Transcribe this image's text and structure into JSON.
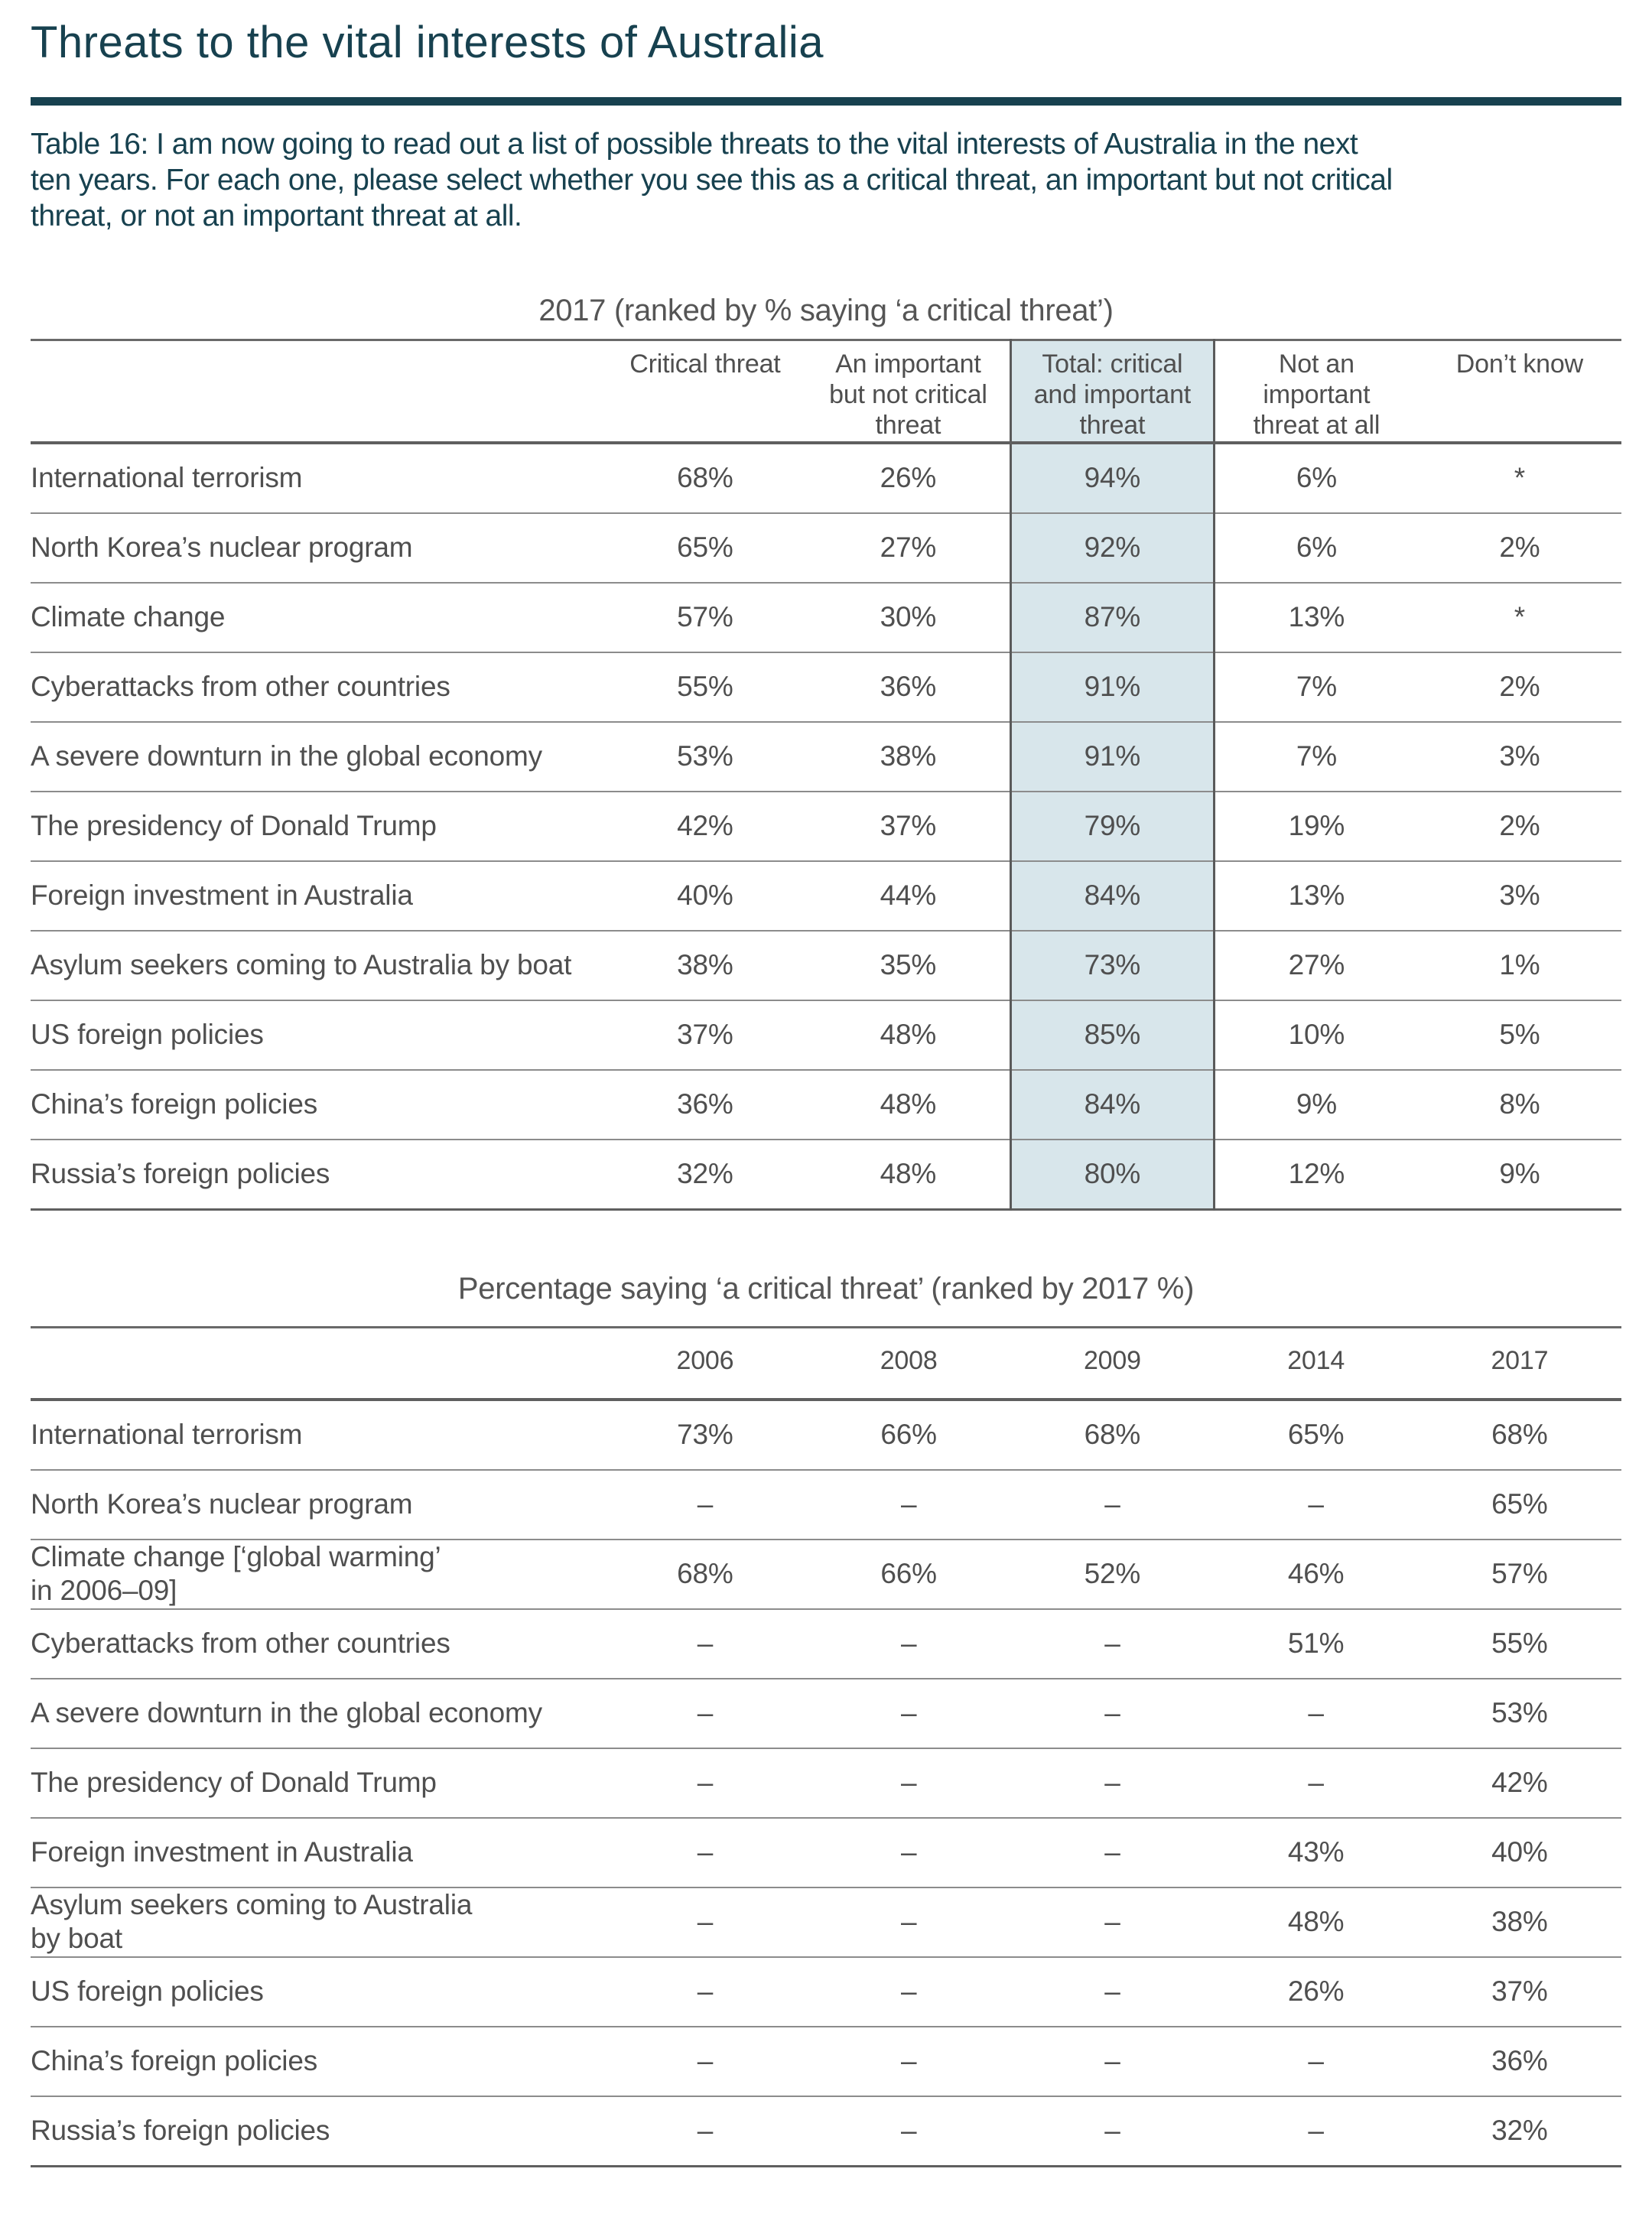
{
  "page": {
    "title": "Threats to the vital interests of Australia",
    "intro": "Table 16: I am now going to read out a list of possible threats to the vital interests of Australia in the next\nten years. For each one, please select whether you see this as a critical threat, an important but not critical\nthreat, or not an important threat at all."
  },
  "colors": {
    "accent_teal": "#17414f",
    "highlight_bg": "#d8e6eb",
    "rule_dark": "#5f5f5f",
    "rule_light": "#8c8c8c"
  },
  "table1": {
    "title": "2017 (ranked by % saying ‘a critical threat’)",
    "columns": [
      "Critical threat",
      "An important\nbut not critical\nthreat",
      "Total: critical\nand important\nthreat",
      "Not an\nimportant\nthreat at all",
      "Don’t know"
    ],
    "highlight_column_index": 2,
    "rows": [
      {
        "label": "International terrorism",
        "values": [
          "68%",
          "26%",
          "94%",
          "6%",
          "*"
        ]
      },
      {
        "label": "North Korea’s nuclear program",
        "values": [
          "65%",
          "27%",
          "92%",
          "6%",
          "2%"
        ]
      },
      {
        "label": "Climate change",
        "values": [
          "57%",
          "30%",
          "87%",
          "13%",
          "*"
        ]
      },
      {
        "label": "Cyberattacks from other countries",
        "values": [
          "55%",
          "36%",
          "91%",
          "7%",
          "2%"
        ]
      },
      {
        "label": "A severe downturn in the global economy",
        "values": [
          "53%",
          "38%",
          "91%",
          "7%",
          "3%"
        ]
      },
      {
        "label": "The presidency of Donald Trump",
        "values": [
          "42%",
          "37%",
          "79%",
          "19%",
          "2%"
        ]
      },
      {
        "label": "Foreign investment in Australia",
        "values": [
          "40%",
          "44%",
          "84%",
          "13%",
          "3%"
        ]
      },
      {
        "label": "Asylum seekers coming to Australia by boat",
        "values": [
          "38%",
          "35%",
          "73%",
          "27%",
          "1%"
        ]
      },
      {
        "label": "US foreign policies",
        "values": [
          "37%",
          "48%",
          "85%",
          "10%",
          "5%"
        ]
      },
      {
        "label": "China’s foreign policies",
        "values": [
          "36%",
          "48%",
          "84%",
          "9%",
          "8%"
        ]
      },
      {
        "label": "Russia’s foreign policies",
        "values": [
          "32%",
          "48%",
          "80%",
          "12%",
          "9%"
        ]
      }
    ]
  },
  "table2": {
    "title": "Percentage saying ‘a critical threat’ (ranked by 2017 %)",
    "columns": [
      "2006",
      "2008",
      "2009",
      "2014",
      "2017"
    ],
    "rows": [
      {
        "label": "International terrorism",
        "values": [
          "73%",
          "66%",
          "68%",
          "65%",
          "68%"
        ]
      },
      {
        "label": "North Korea’s nuclear program",
        "values": [
          "–",
          "–",
          "–",
          "–",
          "65%"
        ]
      },
      {
        "label": "Climate change [‘global warming’\nin 2006–09]",
        "values": [
          "68%",
          "66%",
          "52%",
          "46%",
          "57%"
        ]
      },
      {
        "label": "Cyberattacks from other countries",
        "values": [
          "–",
          "–",
          "–",
          "51%",
          "55%"
        ]
      },
      {
        "label": "A severe downturn in the global economy",
        "values": [
          "–",
          "–",
          "–",
          "–",
          "53%"
        ]
      },
      {
        "label": "The presidency of Donald Trump",
        "values": [
          "–",
          "–",
          "–",
          "–",
          "42%"
        ]
      },
      {
        "label": "Foreign investment in Australia",
        "values": [
          "–",
          "–",
          "–",
          "43%",
          "40%"
        ]
      },
      {
        "label": "Asylum seekers coming to Australia\nby boat",
        "values": [
          "–",
          "–",
          "–",
          "48%",
          "38%"
        ]
      },
      {
        "label": "US foreign policies",
        "values": [
          "–",
          "–",
          "–",
          "26%",
          "37%"
        ]
      },
      {
        "label": "China’s foreign policies",
        "values": [
          "–",
          "–",
          "–",
          "–",
          "36%"
        ]
      },
      {
        "label": "Russia’s foreign policies",
        "values": [
          "–",
          "–",
          "–",
          "–",
          "32%"
        ]
      }
    ]
  }
}
